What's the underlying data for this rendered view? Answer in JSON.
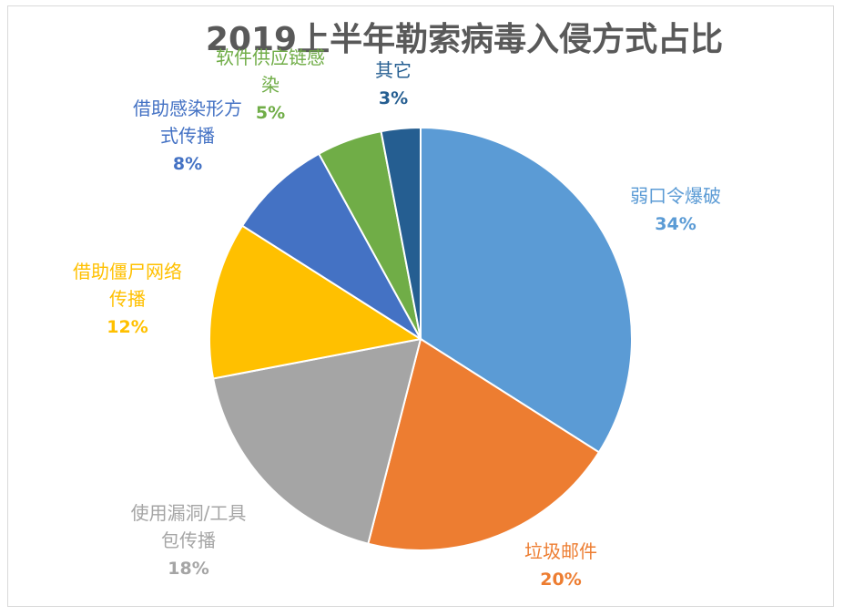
{
  "chart_data": {
    "type": "pie",
    "title": "2019上半年勒索病毒入侵方式占比",
    "slices": [
      {
        "name": "弱口令爆破",
        "value": 34,
        "label": "34%",
        "color": "#5B9BD5"
      },
      {
        "name": "垃圾邮件",
        "value": 20,
        "label": "20%",
        "color": "#ED7D31"
      },
      {
        "name": "使用漏洞/工具包传播",
        "value": 18,
        "label": "18%",
        "color": "#A5A5A5"
      },
      {
        "name": "借助僵尸网络传播",
        "value": 12,
        "label": "12%",
        "color": "#FFC000"
      },
      {
        "name": "借助感染形方式传播",
        "value": 8,
        "label": "8%",
        "color": "#4472C4"
      },
      {
        "name": "软件供应链感染",
        "value": 5,
        "label": "5%",
        "color": "#70AD47"
      },
      {
        "name": "其它",
        "value": 3,
        "label": "3%",
        "color": "#255E91"
      }
    ],
    "start_angle_deg": 0,
    "direction": "clockwise",
    "legend": "none"
  }
}
